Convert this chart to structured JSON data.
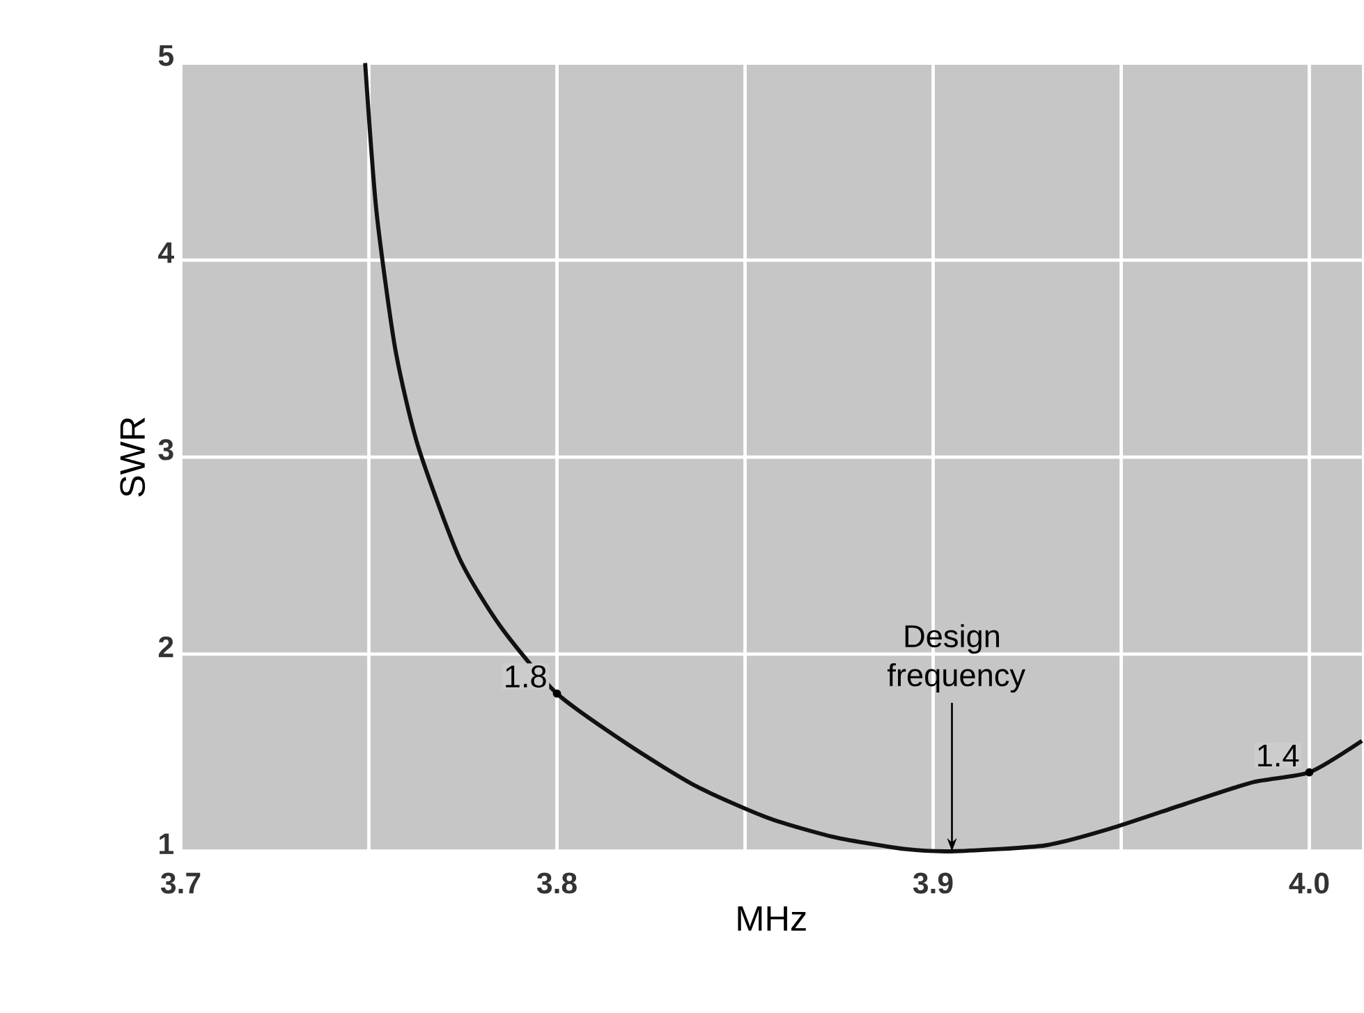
{
  "chart_data": {
    "type": "line",
    "xlabel": "MHz",
    "ylabel": "SWR",
    "series": [
      {
        "color": "#111111",
        "x": [
          3.749,
          3.752,
          3.757,
          3.763,
          3.774,
          3.785,
          3.8,
          3.819,
          3.837,
          3.856,
          3.874,
          3.893,
          3.906,
          3.93,
          3.948,
          3.967,
          3.985,
          4.0,
          4.014
        ],
        "values": [
          5,
          4.25,
          3.55,
          3.06,
          2.49,
          2.14,
          1.8,
          1.54,
          1.33,
          1.17,
          1.07,
          1.01,
          1.0,
          1.03,
          1.12,
          1.24,
          1.35,
          1.4,
          1.56
        ]
      }
    ],
    "xlim": [
      3.7,
      4.014
    ],
    "ylim": [
      1,
      5
    ],
    "xticks": [
      3.7,
      {
        "value": 3.75,
        "label": null
      },
      3.8,
      {
        "value": 3.85,
        "label": null
      },
      3.9,
      {
        "value": 3.95,
        "label": null
      },
      {
        "value": 4.0,
        "label": "4.0"
      }
    ],
    "yticks": [
      1,
      2,
      3,
      4,
      5
    ],
    "grid": true,
    "marker": "none",
    "line_style": "solid",
    "annotations": [
      {
        "text": "1.8",
        "x": 3.8,
        "y": 1.8
      },
      {
        "text": "1.4",
        "x": 4.0,
        "y": 1.4
      },
      {
        "text": "Design frequency",
        "x": 3.905,
        "y": 1
      }
    ]
  }
}
